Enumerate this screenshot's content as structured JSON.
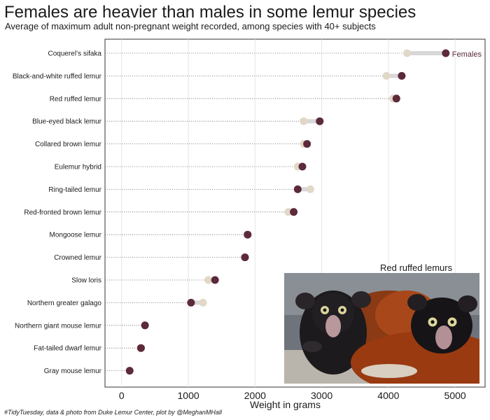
{
  "title": "Females are heavier than males in some lemur species",
  "subtitle": "Average of maximum adult non-pregnant weight recorded, among species with 40+ subjects",
  "caption": "#TidyTuesday, data & photo from Duke Lemur Center, plot by @MeghanMHall",
  "photo": {
    "title": "Red ruffed lemurs"
  },
  "colors": {
    "female": "#5c2a3a",
    "male": "#e2d8c8",
    "segment": "#d8d8d8",
    "grid": "#e6e6e6",
    "guide": "#777777"
  },
  "chart_data": {
    "type": "dumbbell",
    "orientation": "horizontal",
    "xlabel": "Weight in grams",
    "xlim": [
      -250,
      5450
    ],
    "xticks": [
      0,
      1000,
      2000,
      3000,
      4000,
      5000
    ],
    "grid": true,
    "series_annotation": "Females",
    "categories": [
      "Coquerel’s sifaka",
      "Black-and-white ruffed lemur",
      "Red ruffed lemur",
      "Blue-eyed black lemur",
      "Collared brown lemur",
      "Eulemur hybrid",
      "Ring-tailed lemur",
      "Red-fronted brown lemur",
      "Mongoose lemur",
      "Crowned lemur",
      "Slow loris",
      "Northern greater galago",
      "Northern giant mouse lemur",
      "Fat-tailed dwarf lemur",
      "Gray mouse lemur"
    ],
    "series": [
      {
        "key": "female",
        "values": [
          4860,
          4200,
          4120,
          2970,
          2780,
          2710,
          2640,
          2580,
          1890,
          1850,
          1400,
          1040,
          350,
          290,
          120
        ]
      },
      {
        "key": "male",
        "values": [
          4280,
          3970,
          4070,
          2730,
          2730,
          2640,
          2830,
          2500,
          1880,
          1840,
          1300,
          1220,
          350,
          280,
          120
        ]
      }
    ]
  }
}
